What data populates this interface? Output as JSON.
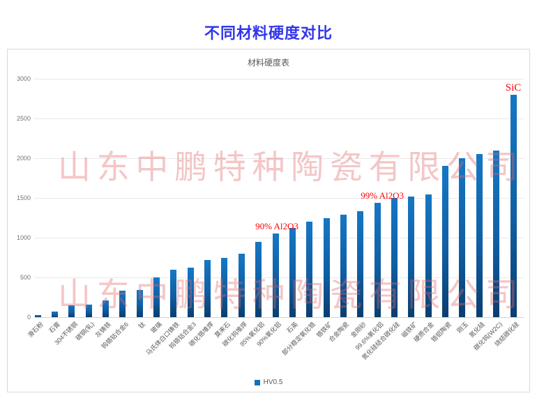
{
  "page_title": "不同材料硬度对比",
  "watermark": {
    "text": "山东中鹏特种陶瓷有限公司"
  },
  "colors": {
    "title": "#3236EA",
    "chart_title": "#595959",
    "bar_gradient_top": "#1577C5",
    "bar_gradient_mid": "#0F5FA4",
    "bar_gradient_bottom": "#0A3E70",
    "legend_swatch": "#1471BD",
    "annotation": "#FF0000",
    "watermark": "rgba(226,106,106,0.38)",
    "axis_text": "#737373",
    "category_text": "#595959",
    "gridline": "#e9e9e9",
    "card_border": "#d9d9d9"
  },
  "chart_data": {
    "type": "bar",
    "title": "材料硬度表",
    "xlabel": "",
    "ylabel": "",
    "legend_label": "HV0.5",
    "legend_position": "bottom",
    "grid": true,
    "ylim": [
      0,
      3000
    ],
    "yticks": [
      0,
      500,
      1000,
      1500,
      2000,
      2500,
      3000
    ],
    "categories": [
      "滑石粉",
      "石膏",
      "304不锈钢",
      "碳钢(轧)",
      "灰铸铁",
      "钨铬钴合金6",
      "钛",
      "玻璃",
      "马氏体白口铸铁",
      "钨铬钴合金3",
      "碳化铬堆焊",
      "莫来石",
      "碳化钨堆焊",
      "85%氧化铝",
      "90%氧化铝",
      "石英",
      "部分稳定氧化锆",
      "铬铁矿",
      "合金陶瓷",
      "金刚砂",
      "99.6%氧化铝",
      "氮化硅结合碳化硅",
      "磁铁矿",
      "硬质合金",
      "锆铝陶瓷",
      "刚玉",
      "氮化硅",
      "碳化钨(W2C)",
      "烧结碳化硅"
    ],
    "values": [
      30,
      70,
      150,
      160,
      210,
      330,
      340,
      500,
      600,
      620,
      720,
      750,
      800,
      950,
      1050,
      1120,
      1200,
      1250,
      1290,
      1330,
      1440,
      1500,
      1520,
      1540,
      1900,
      2000,
      2050,
      2100,
      2800
    ],
    "annotations": [
      {
        "text": "90% Al2O3",
        "category_index": 14,
        "dx": 2,
        "big": false
      },
      {
        "text": "99% Al2O3",
        "category_index": 20,
        "dx": 7,
        "big": false
      },
      {
        "text": "SiC",
        "category_index": 28,
        "dx": 0,
        "big": true
      }
    ]
  }
}
